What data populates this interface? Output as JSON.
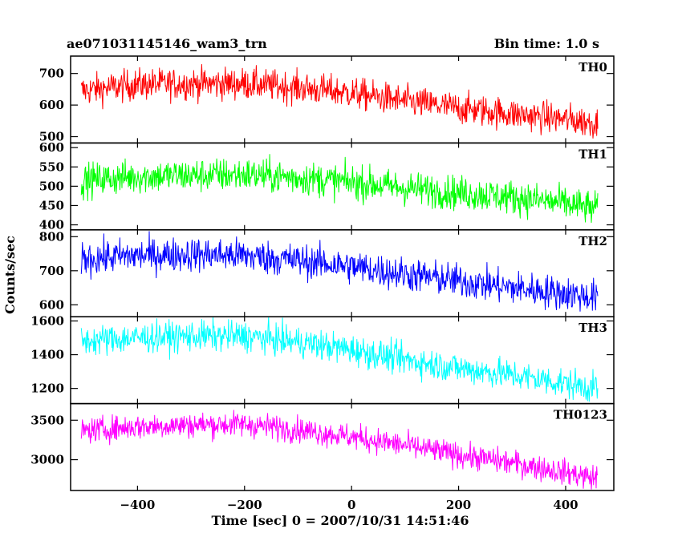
{
  "chart_data": {
    "type": "line",
    "title": "ae071031145146_wam3_trn",
    "subtitle": "Bin time: 1.0 s",
    "xlabel": "Time [sec] 0 = 2007/10/31 14:51:46",
    "ylabel": "Counts/sec",
    "xlim": [
      -525,
      490
    ],
    "x_ticks": [
      -400,
      -200,
      0,
      200,
      400
    ],
    "x_range": [
      -505,
      460
    ],
    "grid": false,
    "panels": [
      {
        "name": "TH0",
        "color": "#ff0000",
        "ylim": [
          480,
          755
        ],
        "y_ticks": [
          500,
          600,
          700
        ],
        "trend_x": [
          -505,
          -400,
          -300,
          -200,
          -100,
          0,
          100,
          200,
          300,
          400,
          460
        ],
        "trend_y": [
          645,
          665,
          668,
          668,
          655,
          638,
          612,
          590,
          572,
          555,
          542
        ],
        "noise": 25
      },
      {
        "name": "TH1",
        "color": "#00ff00",
        "ylim": [
          387,
          612
        ],
        "y_ticks": [
          400,
          450,
          500,
          550,
          600
        ],
        "trend_x": [
          -505,
          -400,
          -300,
          -200,
          -100,
          0,
          100,
          200,
          300,
          400,
          460
        ],
        "trend_y": [
          515,
          525,
          528,
          530,
          522,
          510,
          495,
          483,
          472,
          455,
          440
        ],
        "noise": 22
      },
      {
        "name": "TH2",
        "color": "#0000ff",
        "ylim": [
          565,
          820
        ],
        "y_ticks": [
          600,
          700,
          800
        ],
        "trend_x": [
          -505,
          -400,
          -300,
          -200,
          -100,
          0,
          100,
          200,
          300,
          400,
          460
        ],
        "trend_y": [
          735,
          745,
          748,
          745,
          730,
          712,
          690,
          670,
          650,
          633,
          622
        ],
        "noise": 25
      },
      {
        "name": "TH3",
        "color": "#00ffff",
        "ylim": [
          1110,
          1625
        ],
        "y_ticks": [
          1200,
          1400,
          1600
        ],
        "trend_x": [
          -505,
          -400,
          -300,
          -200,
          -100,
          0,
          100,
          200,
          300,
          400,
          460
        ],
        "trend_y": [
          1480,
          1500,
          1510,
          1510,
          1475,
          1430,
          1370,
          1320,
          1280,
          1230,
          1200
        ],
        "noise": 45
      },
      {
        "name": "TH0123",
        "color": "#ff00ff",
        "ylim": [
          2610,
          3710
        ],
        "y_ticks": [
          3000,
          3500
        ],
        "trend_x": [
          -505,
          -400,
          -300,
          -200,
          -100,
          0,
          100,
          200,
          300,
          400,
          460
        ],
        "trend_y": [
          3360,
          3420,
          3440,
          3450,
          3380,
          3290,
          3180,
          3060,
          2960,
          2840,
          2760
        ],
        "noise": 80
      }
    ]
  }
}
